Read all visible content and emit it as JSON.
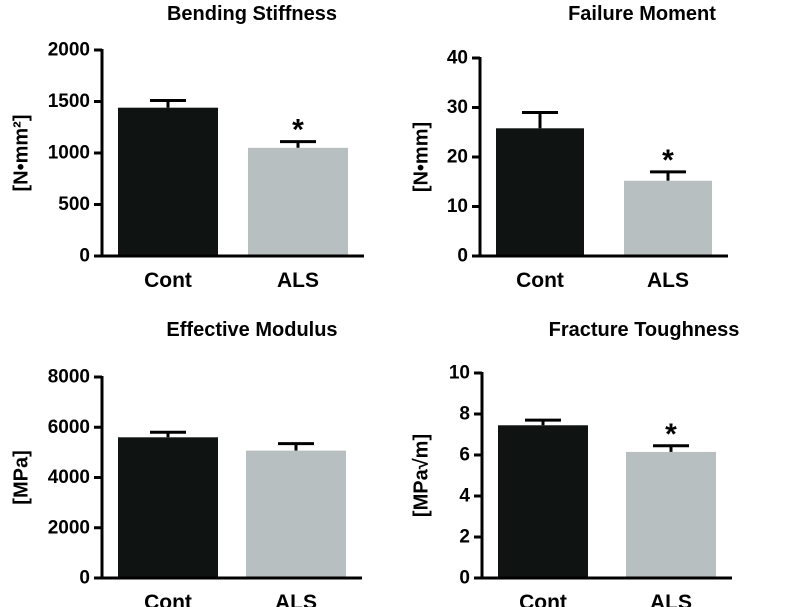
{
  "chart_data": [
    {
      "type": "bar",
      "title": "Bending Stiffness",
      "ylabel": "[N•mm²]",
      "categories": [
        "Cont",
        "ALS"
      ],
      "values": [
        1440,
        1050
      ],
      "errors": [
        70,
        60
      ],
      "annotations": [
        "",
        "*"
      ],
      "colors": [
        "#0f1413",
        "#b8bfc1"
      ],
      "ylim": [
        0,
        2000
      ],
      "yticks": [
        "0",
        "500",
        "1000",
        "1500",
        "2000"
      ]
    },
    {
      "type": "bar",
      "title": "Failure Moment",
      "ylabel": "[N•mm]",
      "categories": [
        "Cont",
        "ALS"
      ],
      "values": [
        25.8,
        15.2
      ],
      "errors": [
        3.2,
        1.8
      ],
      "annotations": [
        "",
        "*"
      ],
      "colors": [
        "#0f1413",
        "#b8bfc1"
      ],
      "ylim": [
        0,
        40
      ],
      "yticks": [
        "0",
        "10",
        "20",
        "30",
        "40"
      ]
    },
    {
      "type": "bar",
      "title": "Effective Modulus",
      "ylabel": "[MPa]",
      "categories": [
        "Cont",
        "ALS"
      ],
      "values": [
        5600,
        5070
      ],
      "errors": [
        200,
        280
      ],
      "annotations": [
        "",
        ""
      ],
      "colors": [
        "#0f1413",
        "#b8bfc1"
      ],
      "ylim": [
        0,
        8000
      ],
      "yticks": [
        "0",
        "2000",
        "4000",
        "6000",
        "8000"
      ]
    },
    {
      "type": "bar",
      "title": "Fracture Toughness",
      "ylabel": "[MPa√m]",
      "categories": [
        "Cont",
        "ALS"
      ],
      "values": [
        7.45,
        6.15
      ],
      "errors": [
        0.25,
        0.3
      ],
      "annotations": [
        "",
        "*"
      ],
      "colors": [
        "#0f1413",
        "#b8bfc1"
      ],
      "ylim": [
        0,
        10
      ],
      "yticks": [
        "0",
        "2",
        "4",
        "6",
        "8",
        "10"
      ]
    }
  ]
}
